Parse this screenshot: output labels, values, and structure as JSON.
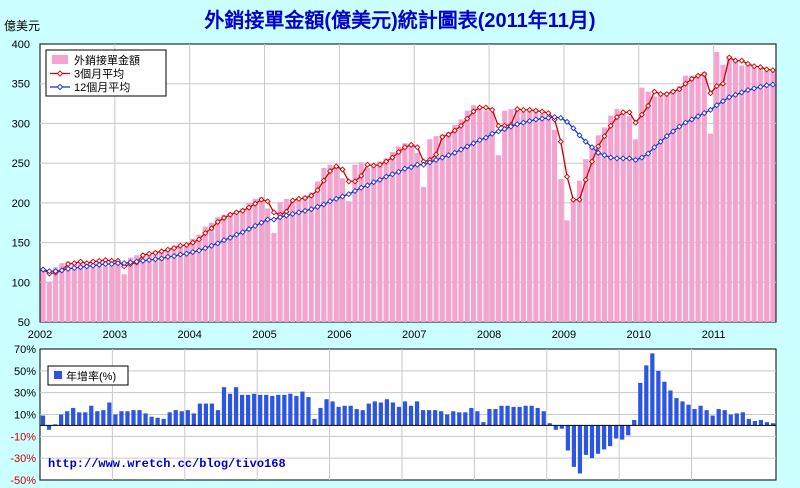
{
  "title": "外銷接單金額(億美元)統計圖表(2011年11月)",
  "unit_label": "億美元",
  "footer_url": "http://www.wretch.cc/blog/tivo168",
  "colors": {
    "background": "#CCFFFF",
    "plot_bg": "#FFFFFF",
    "bars": "#F4A3CF",
    "ma3": "#CC0000",
    "ma12": "#1A33CC",
    "yoy": "#2C55E0",
    "title": "#0000CC"
  },
  "chart_data": [
    {
      "type": "bar",
      "title": "外銷接單金額(億美元)統計圖表(2011年11月)",
      "ylabel": "億美元",
      "ylim": [
        50,
        400
      ],
      "yticks": [
        50,
        100,
        150,
        200,
        250,
        300,
        350,
        400
      ],
      "xtick_labels": [
        "2002",
        "2003",
        "2004",
        "2005",
        "2006",
        "2007",
        "2008",
        "2009",
        "2010",
        "2011"
      ],
      "grid": true,
      "legend_position": "top-left",
      "start": "2002-01",
      "series": [
        {
          "name": "外銷接單金額",
          "kind": "bar",
          "values": [
            117,
            101,
            119,
            124,
            126,
            123,
            124,
            126,
            128,
            127,
            129,
            125,
            128,
            110,
            131,
            134,
            136,
            137,
            139,
            140,
            143,
            146,
            148,
            147,
            155,
            160,
            170,
            175,
            182,
            185,
            188,
            190,
            193,
            200,
            205,
            207,
            193,
            162,
            201,
            205,
            203,
            206,
            209,
            213,
            227,
            244,
            248,
            247,
            231,
            202,
            248,
            251,
            244,
            247,
            252,
            256,
            264,
            271,
            275,
            272,
            263,
            220,
            280,
            284,
            286,
            289,
            298,
            305,
            316,
            323,
            320,
            316,
            314,
            260,
            316,
            318,
            319,
            315,
            316,
            318,
            312,
            310,
            292,
            230,
            178,
            205,
            228,
            255,
            272,
            285,
            295,
            310,
            318,
            315,
            309,
            280,
            345,
            340,
            334,
            338,
            338,
            343,
            347,
            360,
            360,
            361,
            365,
            287,
            390,
            374,
            385,
            378,
            373,
            373,
            370,
            369,
            366,
            365
          ]
        },
        {
          "name": "3個月平均",
          "kind": "line",
          "values": [
            116,
            111,
            112,
            115,
            123,
            124,
            126,
            124,
            126,
            127,
            128,
            127,
            127,
            120,
            123,
            125,
            134,
            136,
            137,
            139,
            141,
            143,
            146,
            147,
            150,
            154,
            162,
            168,
            176,
            181,
            185,
            188,
            190,
            194,
            199,
            204,
            202,
            188,
            185,
            189,
            203,
            205,
            206,
            209,
            216,
            228,
            240,
            246,
            242,
            227,
            227,
            234,
            248,
            247,
            248,
            252,
            257,
            264,
            270,
            273,
            270,
            252,
            254,
            261,
            283,
            286,
            291,
            297,
            306,
            315,
            320,
            320,
            317,
            297,
            297,
            298,
            318,
            317,
            317,
            316,
            315,
            313,
            305,
            277,
            233,
            204,
            204,
            229,
            252,
            271,
            284,
            297,
            308,
            314,
            314,
            301,
            311,
            322,
            340,
            337,
            337,
            340,
            343,
            350,
            356,
            360,
            362,
            338,
            347,
            350,
            383,
            379,
            379,
            375,
            372,
            371,
            368,
            367
          ]
        },
        {
          "name": "12個月平均",
          "kind": "line",
          "values": [
            116,
            114,
            114,
            115,
            117,
            118,
            119,
            120,
            121,
            122,
            123,
            123,
            124,
            124,
            125,
            126,
            127,
            128,
            129,
            130,
            132,
            133,
            135,
            136,
            138,
            140,
            143,
            146,
            149,
            153,
            156,
            160,
            163,
            167,
            171,
            175,
            179,
            179,
            182,
            184,
            186,
            188,
            190,
            192,
            195,
            198,
            202,
            205,
            208,
            211,
            215,
            219,
            222,
            226,
            229,
            233,
            236,
            239,
            243,
            245,
            248,
            248,
            251,
            254,
            257,
            260,
            263,
            267,
            271,
            275,
            279,
            282,
            287,
            290,
            293,
            296,
            299,
            301,
            303,
            305,
            306,
            307,
            308,
            307,
            302,
            294,
            285,
            277,
            270,
            263,
            260,
            257,
            256,
            256,
            256,
            254,
            257,
            262,
            270,
            277,
            284,
            290,
            296,
            301,
            305,
            309,
            313,
            317,
            323,
            328,
            333,
            336,
            339,
            342,
            344,
            346,
            348,
            349
          ]
        }
      ]
    },
    {
      "type": "bar",
      "ylim": [
        -50,
        70
      ],
      "yticks": [
        -50,
        -30,
        -10,
        10,
        30,
        50,
        70
      ],
      "ytick_labels": [
        "-50%",
        "-30%",
        "-10%",
        "10%",
        "30%",
        "50%",
        "70%"
      ],
      "grid": true,
      "legend_position": "top-left",
      "series": [
        {
          "name": "年增率(%)",
          "values": [
            9,
            -4,
            1,
            10,
            13,
            16,
            12,
            12,
            18,
            13,
            14,
            21,
            10,
            13,
            13,
            14,
            14,
            11,
            8,
            7,
            6,
            12,
            14,
            13,
            14,
            11,
            20,
            20,
            20,
            14,
            35,
            29,
            35,
            28,
            28,
            29,
            28,
            28,
            27,
            28,
            28,
            29,
            27,
            31,
            26,
            6,
            16,
            24,
            22,
            17,
            18,
            18,
            15,
            14,
            20,
            22,
            21,
            24,
            21,
            17,
            22,
            18,
            22,
            14,
            14,
            14,
            13,
            10,
            13,
            12,
            12,
            16,
            13,
            3,
            15,
            15,
            18,
            18,
            17,
            17,
            18,
            18,
            16,
            13,
            2,
            -4,
            -3,
            -23,
            -38,
            -44,
            -27,
            -30,
            -26,
            -22,
            -19,
            -12,
            -13,
            -9,
            5,
            39,
            55,
            66,
            50,
            40,
            32,
            25,
            22,
            19,
            15,
            18,
            14,
            9,
            15,
            14,
            10,
            11,
            12,
            6,
            4,
            5,
            3,
            2
          ]
        }
      ]
    }
  ],
  "legend_top": [
    {
      "label": "外銷接單金額",
      "kind": "bar"
    },
    {
      "label": "3個月平均",
      "kind": "ma3"
    },
    {
      "label": "12個月平均",
      "kind": "ma12"
    }
  ],
  "legend_bottom": [
    {
      "label": "年增率(%)",
      "kind": "yoy"
    }
  ]
}
